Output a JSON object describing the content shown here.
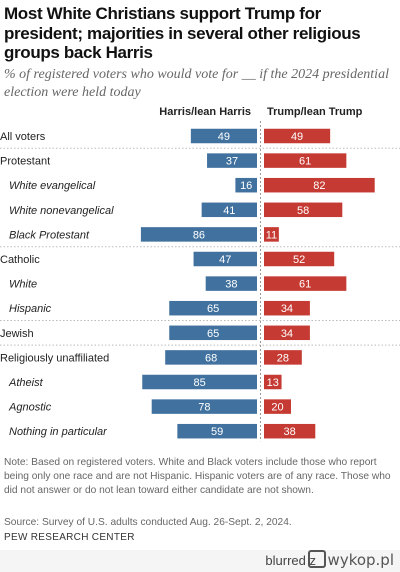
{
  "title": "Most White Christians support Trump for president; majorities in several other religious groups back Harris",
  "subtitle": "% of registered voters who would vote for __ if the 2024 presidential election were held today",
  "note": "Note: Based on registered voters. White and Black voters include those who report being only one race and are not Hispanic. Hispanic voters are of any race. Those who did not answer or do not lean toward either candidate are not shown.",
  "source": "Source: Survey of U.S. adults conducted Aug. 26-Sept. 2, 2024.",
  "org": "PEW RESEARCH CENTER",
  "footer": {
    "user": "blurred",
    "z_label": "z",
    "logo": "wykop.pl"
  },
  "colors": {
    "harris": "#41729F",
    "trump": "#C53A32",
    "divider": "#9a9a9a",
    "row_sep": "#bbbbbb"
  },
  "chart_data": {
    "type": "bar",
    "orientation": "horizontal-diverging",
    "categories": [
      "All voters",
      "Protestant",
      "White evangelical",
      "White nonevangelical",
      "Black Protestant",
      "Catholic",
      "White",
      "Hispanic",
      "Jewish",
      "Religiously unaffiliated",
      "Atheist",
      "Agnostic",
      "Nothing in particular"
    ],
    "subgroup": [
      false,
      false,
      true,
      true,
      true,
      false,
      true,
      true,
      false,
      false,
      true,
      true,
      true
    ],
    "section_start": [
      false,
      true,
      false,
      false,
      false,
      true,
      false,
      false,
      true,
      true,
      false,
      false,
      false
    ],
    "series": [
      {
        "name": "Harris/lean Harris",
        "values": [
          49,
          37,
          16,
          41,
          86,
          47,
          38,
          65,
          65,
          68,
          85,
          78,
          59
        ]
      },
      {
        "name": "Trump/lean Trump",
        "values": [
          49,
          61,
          82,
          58,
          11,
          52,
          61,
          34,
          34,
          28,
          13,
          20,
          38
        ]
      }
    ]
  }
}
